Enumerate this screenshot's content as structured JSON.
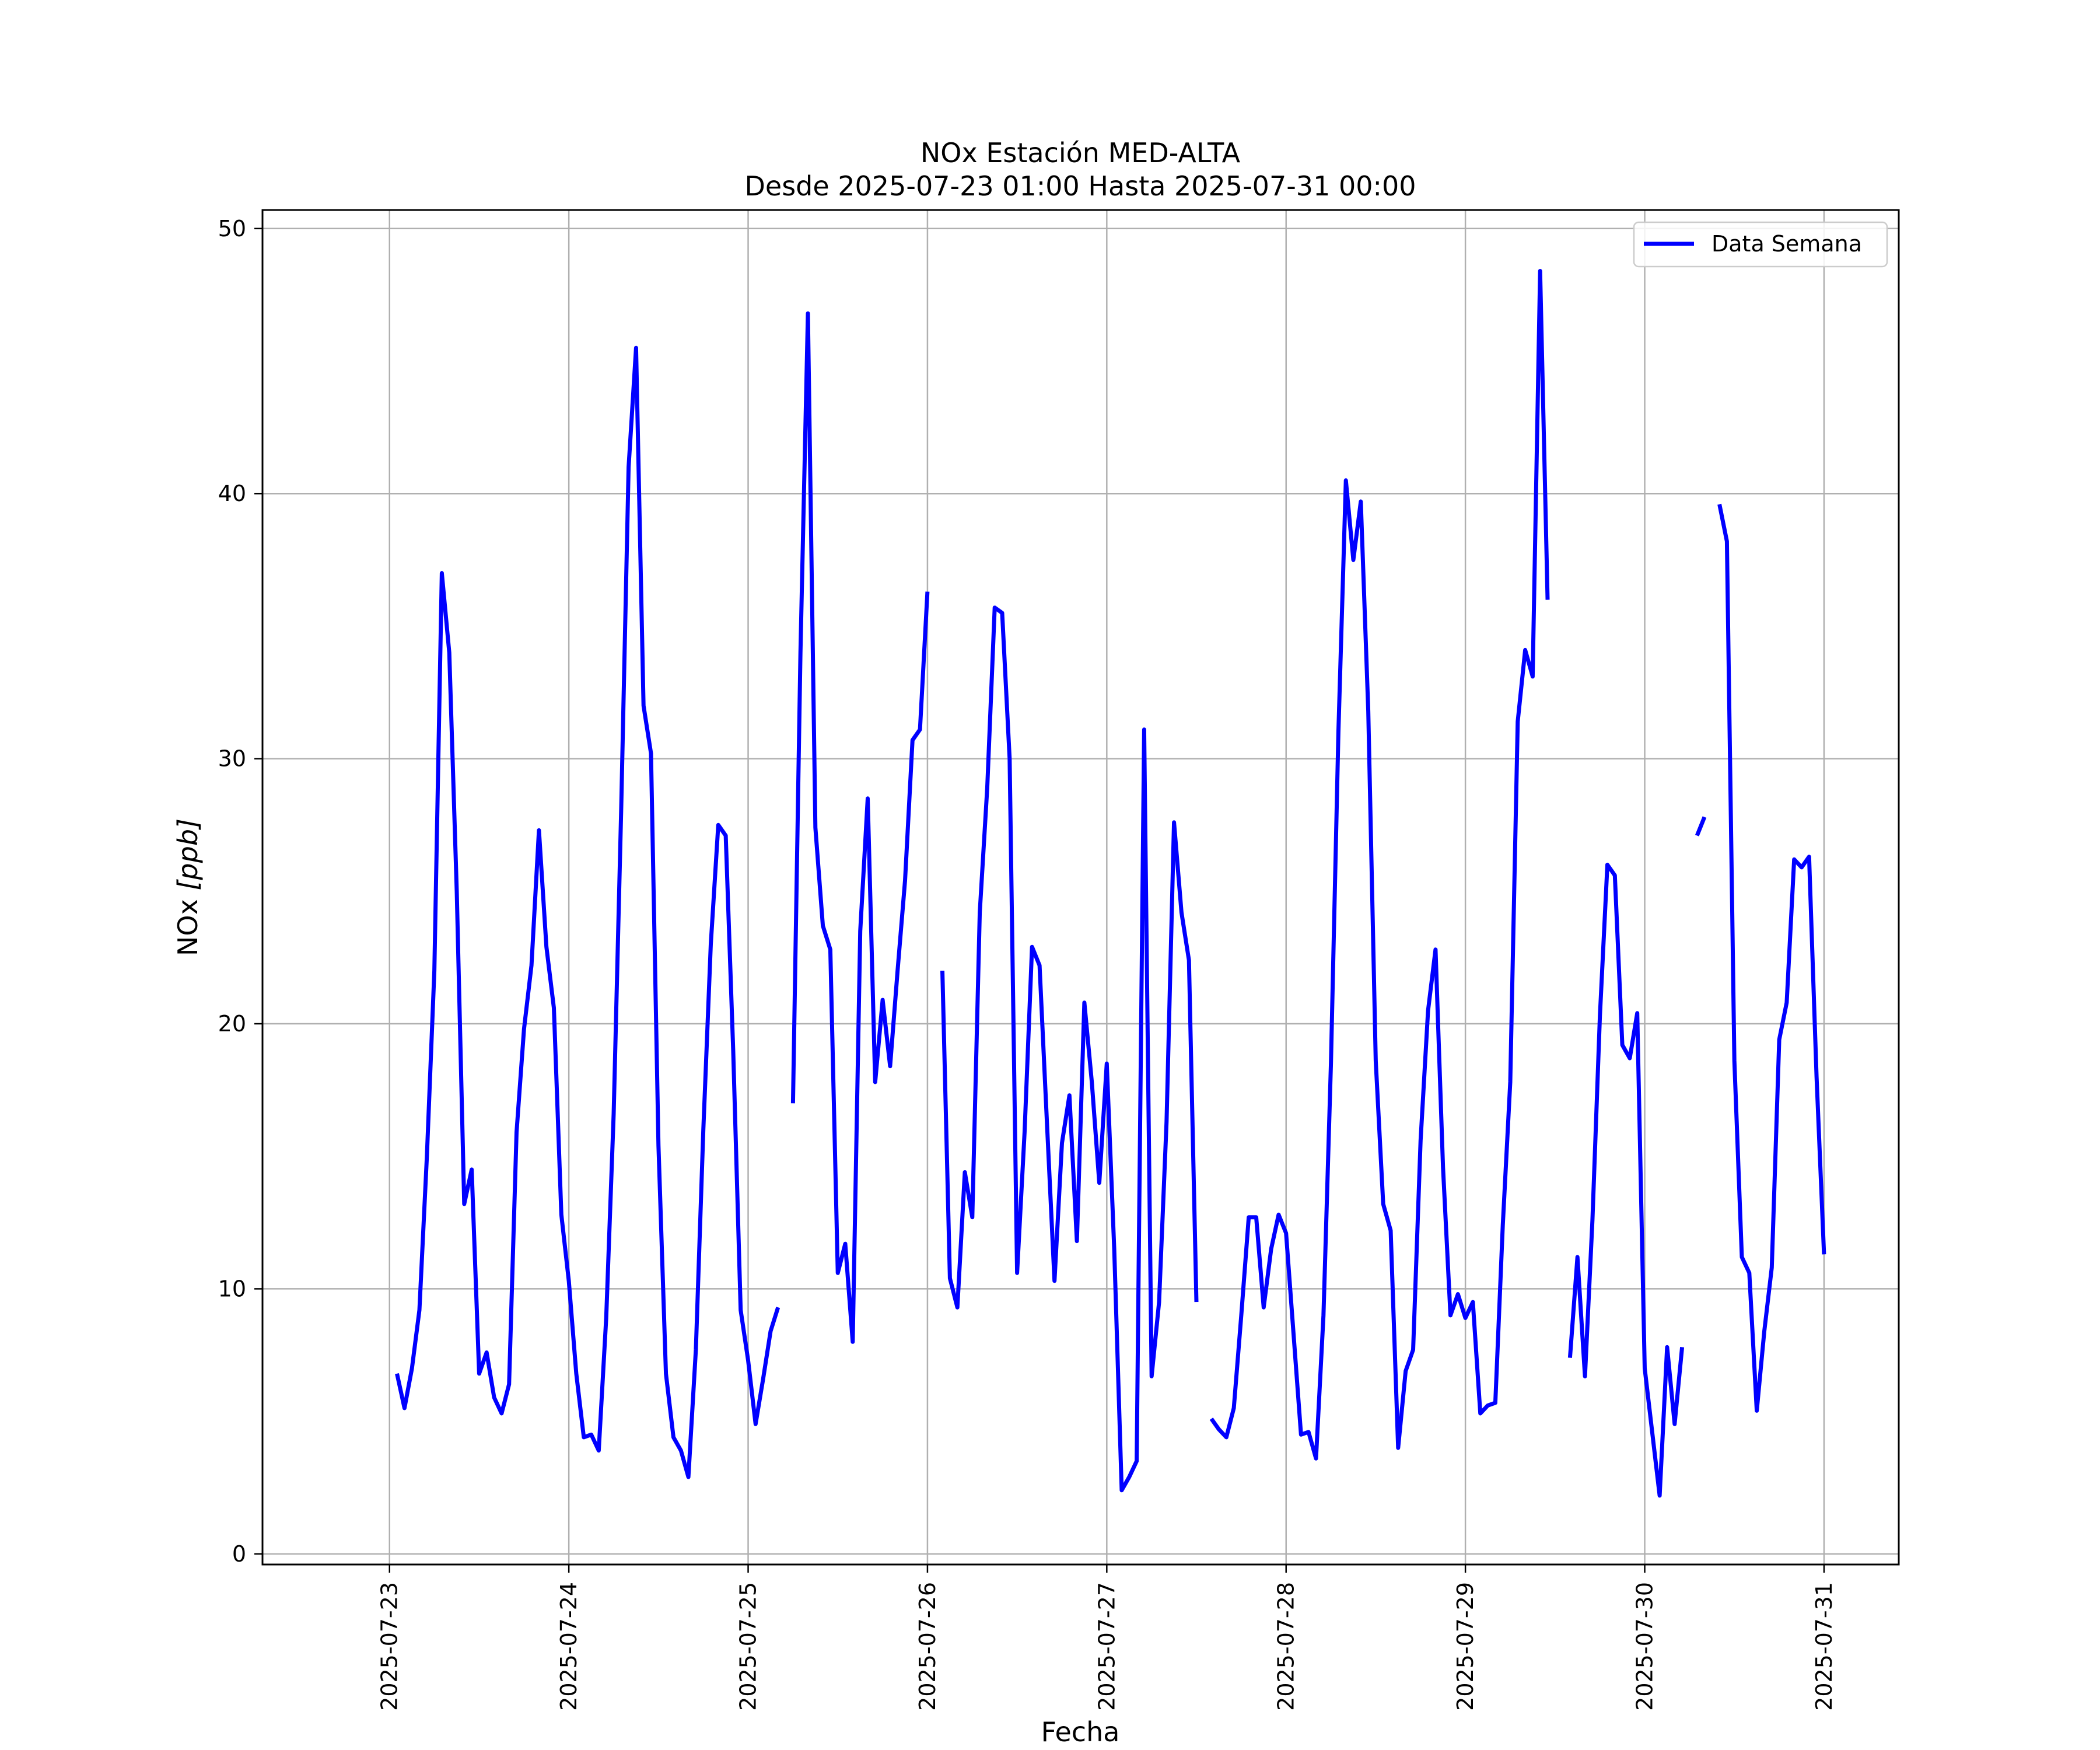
{
  "chart_data": {
    "type": "line",
    "title": "NOx Estación MED-ALTA",
    "subtitle": "Desde 2025-07-23 01:00 Hasta 2025-07-31 00:00",
    "xlabel": "Fecha",
    "ylabel_main": "NOx ",
    "ylabel_unit": "[ppb]",
    "x_ticks": [
      "2025-07-23",
      "2025-07-24",
      "2025-07-25",
      "2025-07-26",
      "2025-07-27",
      "2025-07-28",
      "2025-07-29",
      "2025-07-30",
      "2025-07-31"
    ],
    "y_ticks": [
      0,
      10,
      20,
      30,
      40,
      50
    ],
    "xlim": [
      "2025-07-22T07:00",
      "2025-07-31T10:00"
    ],
    "ylim": [
      -0.4,
      50.7
    ],
    "grid": true,
    "legend_position": "top-right",
    "series": [
      {
        "name": "Data Semana",
        "color": "#0000ff",
        "segments": [
          [
            [
              "2025-07-23T01:00",
              6.8
            ],
            [
              "2025-07-23T02:00",
              5.5
            ],
            [
              "2025-07-23T03:00",
              7.0
            ],
            [
              "2025-07-23T04:00",
              9.2
            ],
            [
              "2025-07-23T05:00",
              15.0
            ],
            [
              "2025-07-23T06:00",
              22.0
            ],
            [
              "2025-07-23T07:00",
              37.0
            ],
            [
              "2025-07-23T08:00",
              34.0
            ],
            [
              "2025-07-23T09:00",
              25.0
            ],
            [
              "2025-07-23T10:00",
              13.2
            ],
            [
              "2025-07-23T11:00",
              14.5
            ],
            [
              "2025-07-23T12:00",
              6.8
            ],
            [
              "2025-07-23T13:00",
              7.6
            ],
            [
              "2025-07-23T14:00",
              5.9
            ],
            [
              "2025-07-23T15:00",
              5.3
            ],
            [
              "2025-07-23T16:00",
              6.4
            ],
            [
              "2025-07-23T17:00",
              15.9
            ],
            [
              "2025-07-23T18:00",
              19.8
            ],
            [
              "2025-07-23T19:00",
              22.2
            ],
            [
              "2025-07-23T20:00",
              27.3
            ],
            [
              "2025-07-23T21:00",
              22.9
            ],
            [
              "2025-07-23T22:00",
              20.6
            ],
            [
              "2025-07-23T23:00",
              12.8
            ],
            [
              "2025-07-24T00:00",
              10.3
            ],
            [
              "2025-07-24T01:00",
              6.8
            ],
            [
              "2025-07-24T02:00",
              4.4
            ],
            [
              "2025-07-24T03:00",
              4.5
            ],
            [
              "2025-07-24T04:00",
              3.9
            ],
            [
              "2025-07-24T05:00",
              8.9
            ],
            [
              "2025-07-24T06:00",
              16.6
            ],
            [
              "2025-07-24T07:00",
              28.0
            ],
            [
              "2025-07-24T08:00",
              41.0
            ],
            [
              "2025-07-24T09:00",
              45.5
            ],
            [
              "2025-07-24T10:00",
              32.0
            ],
            [
              "2025-07-24T11:00",
              30.2
            ],
            [
              "2025-07-24T12:00",
              15.4
            ],
            [
              "2025-07-24T13:00",
              6.8
            ],
            [
              "2025-07-24T14:00",
              4.4
            ],
            [
              "2025-07-24T15:00",
              3.9
            ],
            [
              "2025-07-24T16:00",
              2.9
            ],
            [
              "2025-07-24T17:00",
              7.7
            ],
            [
              "2025-07-24T18:00",
              16.0
            ],
            [
              "2025-07-24T19:00",
              23.0
            ],
            [
              "2025-07-24T20:00",
              27.5
            ],
            [
              "2025-07-24T21:00",
              27.1
            ],
            [
              "2025-07-24T22:00",
              19.0
            ],
            [
              "2025-07-24T23:00",
              9.2
            ],
            [
              "2025-07-25T00:00",
              7.3
            ],
            [
              "2025-07-25T01:00",
              4.9
            ],
            [
              "2025-07-25T02:00",
              6.6
            ],
            [
              "2025-07-25T03:00",
              8.4
            ],
            [
              "2025-07-25T04:00",
              9.3
            ]
          ],
          [
            [
              "2025-07-25T06:00",
              17.0
            ],
            [
              "2025-07-25T07:00",
              34.0
            ],
            [
              "2025-07-25T08:00",
              46.8
            ],
            [
              "2025-07-25T09:00",
              27.4
            ],
            [
              "2025-07-25T10:00",
              23.7
            ],
            [
              "2025-07-25T11:00",
              22.8
            ],
            [
              "2025-07-25T12:00",
              10.6
            ],
            [
              "2025-07-25T13:00",
              11.7
            ],
            [
              "2025-07-25T14:00",
              8.0
            ],
            [
              "2025-07-25T15:00",
              23.5
            ],
            [
              "2025-07-25T16:00",
              28.5
            ],
            [
              "2025-07-25T17:00",
              17.8
            ],
            [
              "2025-07-25T18:00",
              20.9
            ],
            [
              "2025-07-25T19:00",
              18.4
            ],
            [
              "2025-07-25T20:00",
              22.0
            ],
            [
              "2025-07-25T21:00",
              25.4
            ],
            [
              "2025-07-25T22:00",
              30.7
            ],
            [
              "2025-07-25T23:00",
              31.1
            ],
            [
              "2025-07-26T00:00",
              36.3
            ]
          ],
          [
            [
              "2025-07-26T02:00",
              22.0
            ],
            [
              "2025-07-26T03:00",
              10.4
            ],
            [
              "2025-07-26T04:00",
              9.3
            ],
            [
              "2025-07-26T05:00",
              14.4
            ],
            [
              "2025-07-26T06:00",
              12.7
            ],
            [
              "2025-07-26T07:00",
              24.2
            ],
            [
              "2025-07-26T08:00",
              28.9
            ],
            [
              "2025-07-26T09:00",
              35.7
            ],
            [
              "2025-07-26T10:00",
              35.5
            ],
            [
              "2025-07-26T11:00",
              30.0
            ],
            [
              "2025-07-26T12:00",
              10.6
            ],
            [
              "2025-07-26T13:00",
              15.9
            ],
            [
              "2025-07-26T14:00",
              22.9
            ],
            [
              "2025-07-26T15:00",
              22.2
            ],
            [
              "2025-07-26T16:00",
              16.2
            ],
            [
              "2025-07-26T17:00",
              10.3
            ],
            [
              "2025-07-26T18:00",
              15.5
            ],
            [
              "2025-07-26T19:00",
              17.3
            ],
            [
              "2025-07-26T20:00",
              11.8
            ],
            [
              "2025-07-26T21:00",
              20.8
            ],
            [
              "2025-07-26T22:00",
              17.8
            ],
            [
              "2025-07-26T23:00",
              14.0
            ],
            [
              "2025-07-27T00:00",
              18.5
            ],
            [
              "2025-07-27T01:00",
              11.5
            ],
            [
              "2025-07-27T02:00",
              2.4
            ],
            [
              "2025-07-27T03:00",
              2.9
            ],
            [
              "2025-07-27T04:00",
              3.5
            ],
            [
              "2025-07-27T05:00",
              31.1
            ],
            [
              "2025-07-27T06:00",
              6.7
            ],
            [
              "2025-07-27T07:00",
              9.5
            ],
            [
              "2025-07-27T08:00",
              16.3
            ],
            [
              "2025-07-27T09:00",
              27.6
            ],
            [
              "2025-07-27T10:00",
              24.2
            ],
            [
              "2025-07-27T11:00",
              22.4
            ],
            [
              "2025-07-27T12:00",
              9.5
            ]
          ],
          [
            [
              "2025-07-27T14:00",
              5.1
            ],
            [
              "2025-07-27T15:00",
              4.7
            ],
            [
              "2025-07-27T16:00",
              4.4
            ],
            [
              "2025-07-27T17:00",
              5.5
            ],
            [
              "2025-07-27T18:00",
              9.0
            ],
            [
              "2025-07-27T19:00",
              12.7
            ],
            [
              "2025-07-27T20:00",
              12.7
            ],
            [
              "2025-07-27T21:00",
              9.3
            ],
            [
              "2025-07-27T22:00",
              11.5
            ],
            [
              "2025-07-27T23:00",
              12.8
            ],
            [
              "2025-07-28T00:00",
              12.1
            ],
            [
              "2025-07-28T01:00",
              8.3
            ],
            [
              "2025-07-28T02:00",
              4.5
            ],
            [
              "2025-07-28T03:00",
              4.6
            ],
            [
              "2025-07-28T04:00",
              3.6
            ],
            [
              "2025-07-28T05:00",
              9.0
            ],
            [
              "2025-07-28T06:00",
              18.5
            ],
            [
              "2025-07-28T07:00",
              31.0
            ],
            [
              "2025-07-28T08:00",
              40.5
            ],
            [
              "2025-07-28T09:00",
              37.5
            ],
            [
              "2025-07-28T10:00",
              39.7
            ],
            [
              "2025-07-28T11:00",
              31.8
            ],
            [
              "2025-07-28T12:00",
              18.6
            ],
            [
              "2025-07-28T13:00",
              13.2
            ],
            [
              "2025-07-28T14:00",
              12.2
            ],
            [
              "2025-07-28T15:00",
              4.0
            ],
            [
              "2025-07-28T16:00",
              6.9
            ],
            [
              "2025-07-28T17:00",
              7.7
            ],
            [
              "2025-07-28T18:00",
              15.6
            ],
            [
              "2025-07-28T19:00",
              20.5
            ],
            [
              "2025-07-28T20:00",
              22.8
            ],
            [
              "2025-07-28T21:00",
              14.6
            ],
            [
              "2025-07-28T22:00",
              9.0
            ],
            [
              "2025-07-28T23:00",
              9.8
            ],
            [
              "2025-07-29T00:00",
              8.9
            ],
            [
              "2025-07-29T01:00",
              9.5
            ],
            [
              "2025-07-29T02:00",
              5.3
            ],
            [
              "2025-07-29T03:00",
              5.6
            ],
            [
              "2025-07-29T04:00",
              5.7
            ],
            [
              "2025-07-29T05:00",
              12.4
            ],
            [
              "2025-07-29T06:00",
              17.8
            ],
            [
              "2025-07-29T07:00",
              31.4
            ],
            [
              "2025-07-29T08:00",
              34.1
            ],
            [
              "2025-07-29T09:00",
              33.1
            ],
            [
              "2025-07-29T10:00",
              48.4
            ],
            [
              "2025-07-29T11:00",
              36.0
            ]
          ],
          [
            [
              "2025-07-29T14:00",
              7.4
            ],
            [
              "2025-07-29T15:00",
              11.2
            ],
            [
              "2025-07-29T16:00",
              6.7
            ],
            [
              "2025-07-29T17:00",
              12.6
            ],
            [
              "2025-07-29T18:00",
              20.3
            ],
            [
              "2025-07-29T19:00",
              26.0
            ],
            [
              "2025-07-29T20:00",
              25.6
            ],
            [
              "2025-07-29T21:00",
              19.2
            ],
            [
              "2025-07-29T22:00",
              18.7
            ],
            [
              "2025-07-29T23:00",
              20.4
            ],
            [
              "2025-07-30T00:00",
              7.0
            ],
            [
              "2025-07-30T01:00",
              4.6
            ],
            [
              "2025-07-30T02:00",
              2.2
            ],
            [
              "2025-07-30T03:00",
              7.8
            ],
            [
              "2025-07-30T04:00",
              4.9
            ],
            [
              "2025-07-30T05:00",
              7.8
            ]
          ],
          [
            [
              "2025-07-30T07:00",
              27.1
            ],
            [
              "2025-07-30T08:00",
              27.8
            ]
          ],
          [
            [
              "2025-07-30T10:00",
              39.6
            ],
            [
              "2025-07-30T11:00",
              38.2
            ],
            [
              "2025-07-30T12:00",
              18.6
            ],
            [
              "2025-07-30T13:00",
              11.2
            ],
            [
              "2025-07-30T14:00",
              10.6
            ],
            [
              "2025-07-30T15:00",
              5.4
            ],
            [
              "2025-07-30T16:00",
              8.4
            ],
            [
              "2025-07-30T17:00",
              10.8
            ],
            [
              "2025-07-30T18:00",
              19.4
            ],
            [
              "2025-07-30T19:00",
              20.8
            ],
            [
              "2025-07-30T20:00",
              26.2
            ],
            [
              "2025-07-30T21:00",
              25.9
            ],
            [
              "2025-07-30T22:00",
              26.3
            ],
            [
              "2025-07-30T23:00",
              18.0
            ],
            [
              "2025-07-31T00:00",
              11.3
            ]
          ]
        ]
      }
    ]
  }
}
